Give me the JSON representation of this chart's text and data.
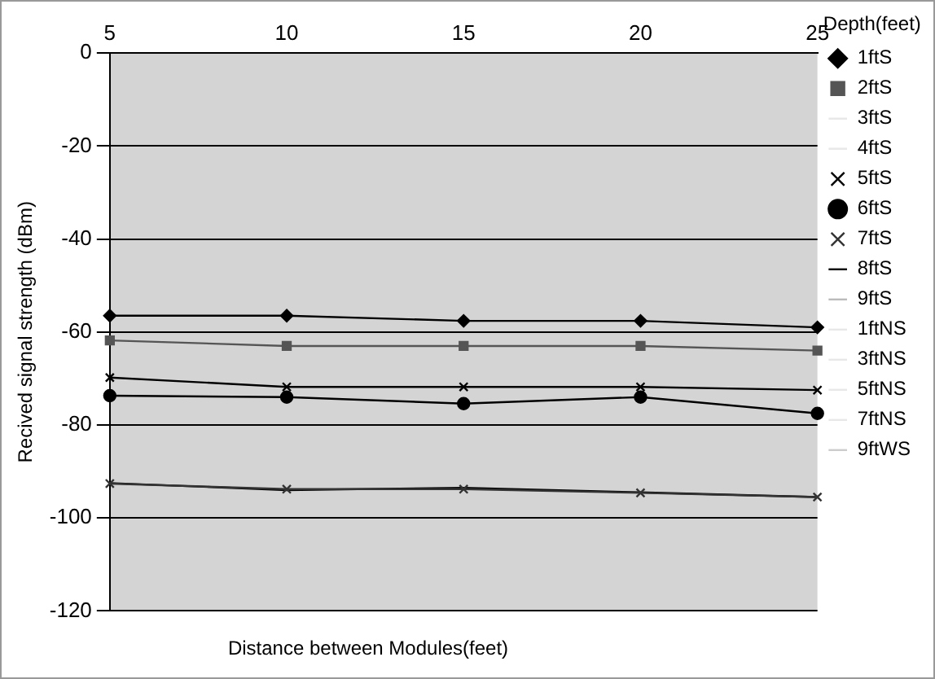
{
  "chart_data": {
    "type": "line",
    "xlabel": "Distance between Modules(feet)",
    "ylabel": "Recived signal strength (dBm)",
    "legend_title": "Depth(feet)",
    "categories": [
      "5",
      "10",
      "15",
      "20",
      "25"
    ],
    "ylim": [
      -120,
      0
    ],
    "yticks": [
      -120,
      -100,
      -80,
      -60,
      -40,
      -20,
      0
    ],
    "grid": "y",
    "legend": "right",
    "series": [
      {
        "name": "1ftS",
        "color": "#000000",
        "marker": "diamond",
        "values": [
          -56.5,
          -56.5,
          -57.6,
          -57.6,
          -59
        ]
      },
      {
        "name": "2ftS",
        "color": "#555555",
        "marker": "square",
        "values": [
          -61.8,
          -63,
          -63,
          -63,
          -64
        ]
      },
      {
        "name": "3ftS",
        "color": "#e8e8e8",
        "marker": "none",
        "values": [
          null,
          null,
          null,
          null,
          null
        ]
      },
      {
        "name": "4ftS",
        "color": "#e8e8e8",
        "marker": "none",
        "values": [
          null,
          null,
          null,
          null,
          null
        ]
      },
      {
        "name": "5ftS",
        "color": "#000000",
        "marker": "cross",
        "values": [
          -69.8,
          -71.8,
          -71.8,
          -71.8,
          -72.5
        ]
      },
      {
        "name": "6ftS",
        "color": "#000000",
        "marker": "circle",
        "values": [
          -73.7,
          -74,
          -75.4,
          -74,
          -77.5
        ]
      },
      {
        "name": "7ftS",
        "color": "#333333",
        "marker": "cross",
        "values": [
          -92.6,
          -93.8,
          -93.8,
          -94.6,
          -95.5
        ]
      },
      {
        "name": "8ftS",
        "color": "#000000",
        "marker": "none",
        "values": [
          -92.5,
          -94,
          -93.5,
          -94.5,
          -95.5
        ]
      },
      {
        "name": "9ftS",
        "color": "#bbbbbb",
        "marker": "none",
        "values": [
          null,
          null,
          null,
          null,
          null
        ]
      },
      {
        "name": "1ftNS",
        "color": "#e8e8e8",
        "marker": "none",
        "values": [
          null,
          null,
          null,
          null,
          null
        ]
      },
      {
        "name": "3ftNS",
        "color": "#e8e8e8",
        "marker": "none",
        "values": [
          null,
          null,
          null,
          null,
          null
        ]
      },
      {
        "name": "5ftNS",
        "color": "#e8e8e8",
        "marker": "none",
        "values": [
          null,
          null,
          null,
          null,
          null
        ]
      },
      {
        "name": "7ftNS",
        "color": "#e8e8e8",
        "marker": "none",
        "values": [
          null,
          null,
          null,
          null,
          null
        ]
      },
      {
        "name": "9ftWS",
        "color": "#cccccc",
        "marker": "none",
        "values": [
          null,
          null,
          null,
          null,
          null
        ]
      }
    ]
  }
}
